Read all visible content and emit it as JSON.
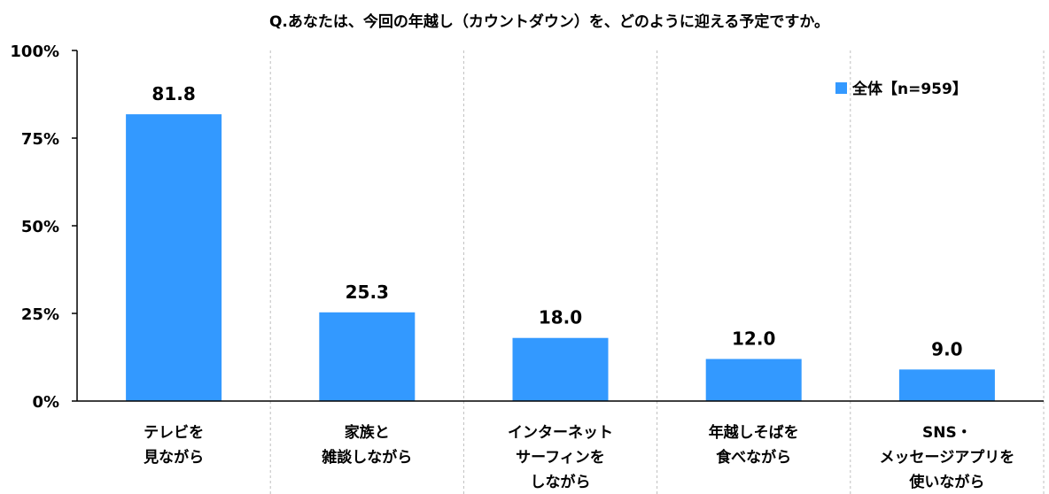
{
  "chart_data": {
    "type": "bar",
    "title": "Q.あなたは、今回の年越し（カウントダウン）を、どのように迎える予定ですか。",
    "categories": [
      [
        "テレビを",
        "見ながら"
      ],
      [
        "家族と",
        "雑談しながら"
      ],
      [
        "インターネット",
        "サーフィンを",
        "しながら"
      ],
      [
        "年越しそばを",
        "食べながら"
      ],
      [
        "SNS・",
        "メッセージアプリを",
        "使いながら"
      ]
    ],
    "series": [
      {
        "name": "全体【n=959】",
        "values": [
          81.8,
          25.3,
          18.0,
          12.0,
          9.0
        ]
      }
    ],
    "value_labels": [
      "81.8",
      "25.3",
      "18.0",
      "12.0",
      "9.0"
    ],
    "ylim": [
      0,
      100
    ],
    "yticks": [
      "0%",
      "25%",
      "50%",
      "75%",
      "100%"
    ],
    "ytick_values": [
      0,
      25,
      50,
      75,
      100
    ],
    "grid": "vertical dashed separators",
    "legend_position": "top-right",
    "colors": {
      "bar": "#3399FF",
      "axis": "#000000",
      "separator": "#BFBFBF"
    }
  }
}
